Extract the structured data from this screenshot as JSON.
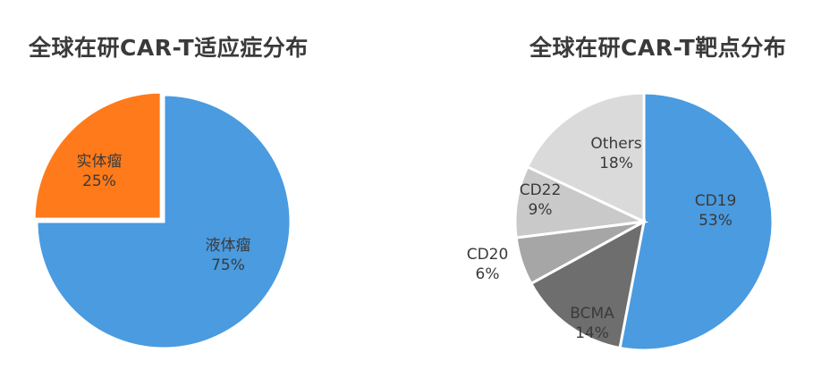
{
  "chart_data": [
    {
      "type": "pie",
      "title": "全球在研CAR-T适应症分布",
      "slices": [
        {
          "label": "液体瘤",
          "value": 75,
          "display": "75%",
          "color": "#4A9BE0",
          "exploded": false
        },
        {
          "label": "实体瘤",
          "value": 25,
          "display": "25%",
          "color": "#FF7A1A",
          "exploded": true
        }
      ]
    },
    {
      "type": "pie",
      "title": "全球在研CAR-T靶点分布",
      "slices": [
        {
          "label": "CD19",
          "value": 53,
          "display": "53%",
          "color": "#4A9BE0"
        },
        {
          "label": "BCMA",
          "value": 14,
          "display": "14%",
          "color": "#6E6E6E"
        },
        {
          "label": "CD20",
          "value": 6,
          "display": "6%",
          "color": "#A6A6A6"
        },
        {
          "label": "CD22",
          "value": 9,
          "display": "9%",
          "color": "#C9C9C9"
        },
        {
          "label": "Others",
          "value": 18,
          "display": "18%",
          "color": "#DADADA"
        }
      ]
    }
  ]
}
